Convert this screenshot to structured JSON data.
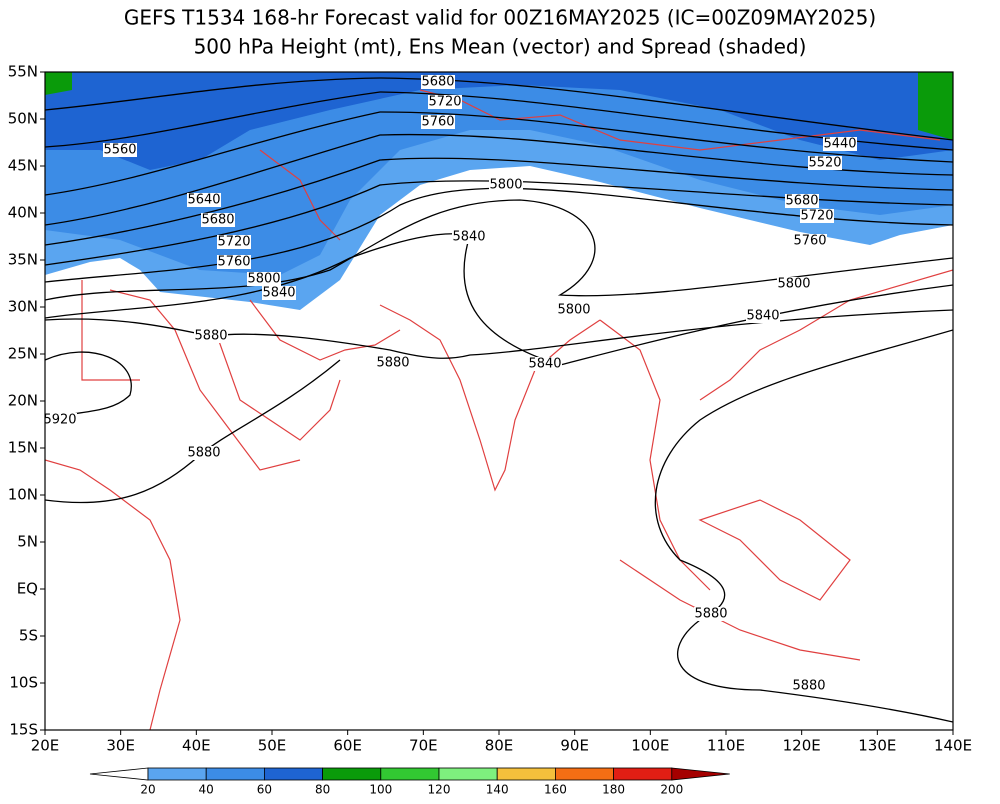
{
  "title": [
    "GEFS T1534 168-hr Forecast valid for 00Z16MAY2025 (IC=00Z09MAY2025)",
    "500 hPa Height (mt), Ens Mean (vector) and Spread (shaded)"
  ],
  "lat_labels": [
    "55N",
    "50N",
    "45N",
    "40N",
    "35N",
    "30N",
    "25N",
    "20N",
    "15N",
    "10N",
    "5N",
    "EQ",
    "5S",
    "10S",
    "15S"
  ],
  "lon_labels": [
    "20E",
    "30E",
    "40E",
    "50E",
    "60E",
    "70E",
    "80E",
    "90E",
    "100E",
    "110E",
    "120E",
    "130E",
    "140E"
  ],
  "contour_labels": [
    "5680",
    "5720",
    "5760",
    "5560",
    "5640",
    "5680",
    "5720",
    "5760",
    "5800",
    "5840",
    "5880",
    "5920",
    "5880",
    "5800",
    "5840",
    "5800",
    "5880",
    "5840",
    "5840",
    "5800",
    "5760",
    "5720",
    "5680",
    "5440",
    "5520",
    "5880",
    "5880"
  ],
  "colorbar": {
    "labels": [
      "20",
      "40",
      "60",
      "80",
      "100",
      "120",
      "140",
      "160",
      "180",
      "200"
    ],
    "colors": [
      "#ffffff",
      "#5aa5f0",
      "#3c8ce6",
      "#1e64d2",
      "#0a9b0a",
      "#32c832",
      "#7ef07e",
      "#f5c03c",
      "#f56e14",
      "#e11e14",
      "#a50000"
    ]
  }
}
